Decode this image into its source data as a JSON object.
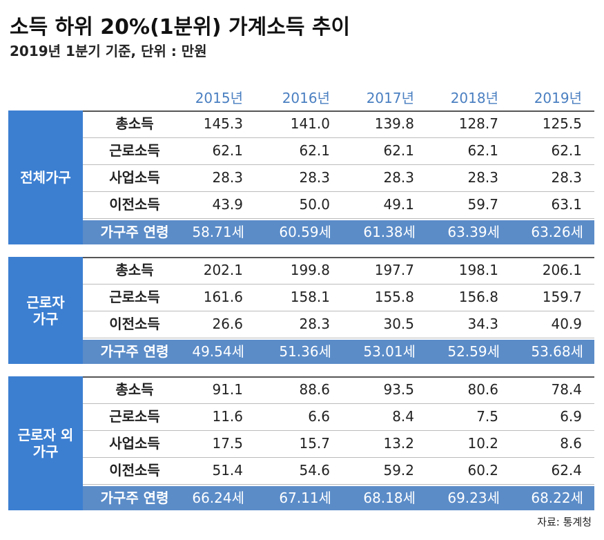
{
  "header": {
    "title": "소득 하위 20%(1분위) 가계소득 추이",
    "subtitle": "2019년 1분기 기준, 단위 : 만원"
  },
  "table": {
    "columns": [
      "2015년",
      "2016년",
      "2017년",
      "2018년",
      "2019년"
    ],
    "groups": [
      {
        "label": [
          "전체가구"
        ],
        "rows": [
          {
            "label": "총소득",
            "values": [
              "145.3",
              "141.0",
              "139.8",
              "128.7",
              "125.5"
            ]
          },
          {
            "label": "근로소득",
            "values": [
              "62.1",
              "62.1",
              "62.1",
              "62.1",
              "62.1"
            ]
          },
          {
            "label": "사업소득",
            "values": [
              "28.3",
              "28.3",
              "28.3",
              "28.3",
              "28.3"
            ]
          },
          {
            "label": "이전소득",
            "values": [
              "43.9",
              "50.0",
              "49.1",
              "59.7",
              "63.1"
            ]
          }
        ],
        "age": {
          "label": "가구주 연령",
          "values": [
            "58.71세",
            "60.59세",
            "61.38세",
            "63.39세",
            "63.26세"
          ]
        }
      },
      {
        "label": [
          "근로자",
          "가구"
        ],
        "rows": [
          {
            "label": "총소득",
            "values": [
              "202.1",
              "199.8",
              "197.7",
              "198.1",
              "206.1"
            ]
          },
          {
            "label": "근로소득",
            "values": [
              "161.6",
              "158.1",
              "155.8",
              "156.8",
              "159.7"
            ]
          },
          {
            "label": "이전소득",
            "values": [
              "26.6",
              "28.3",
              "30.5",
              "34.3",
              "40.9"
            ]
          }
        ],
        "age": {
          "label": "가구주 연령",
          "values": [
            "49.54세",
            "51.36세",
            "53.01세",
            "52.59세",
            "53.68세"
          ]
        }
      },
      {
        "label": [
          "근로자 외",
          "가구"
        ],
        "rows": [
          {
            "label": "총소득",
            "values": [
              "91.1",
              "88.6",
              "93.5",
              "80.6",
              "78.4"
            ]
          },
          {
            "label": "근로소득",
            "values": [
              "11.6",
              "6.6",
              "8.4",
              "7.5",
              "6.9"
            ]
          },
          {
            "label": "사업소득",
            "values": [
              "17.5",
              "15.7",
              "13.2",
              "10.2",
              "8.6"
            ]
          },
          {
            "label": "이전소득",
            "values": [
              "51.4",
              "54.6",
              "59.2",
              "60.2",
              "62.4"
            ]
          }
        ],
        "age": {
          "label": "가구주 연령",
          "values": [
            "66.24세",
            "67.11세",
            "68.18세",
            "69.23세",
            "68.22세"
          ]
        }
      }
    ]
  },
  "footer": {
    "source": "자료: 통계청"
  }
}
